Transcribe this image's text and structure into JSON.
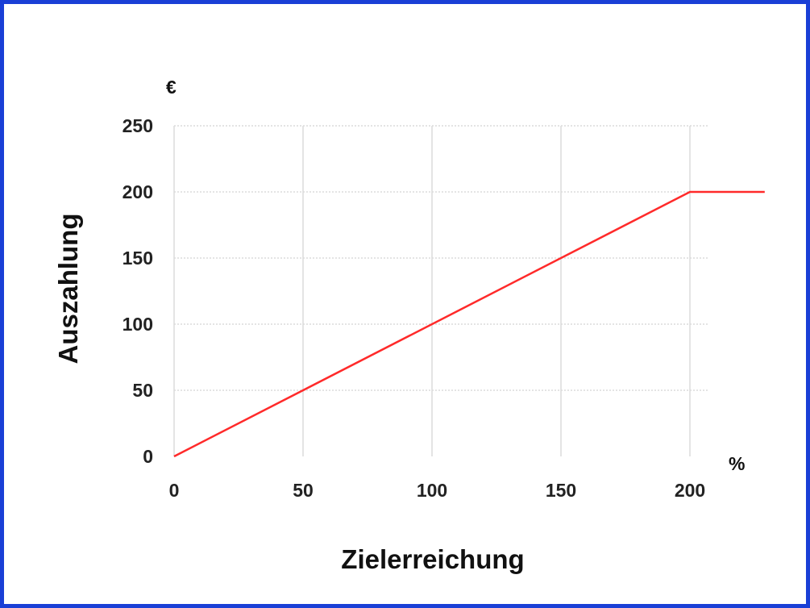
{
  "chart_data": {
    "type": "line",
    "title": "",
    "xlabel": "Zielerreichung",
    "ylabel": "Auszahlung",
    "x_unit": "%",
    "y_unit": "€",
    "xlim": [
      0,
      200
    ],
    "ylim": [
      0,
      250
    ],
    "x_ticks": [
      0,
      50,
      100,
      150,
      200
    ],
    "y_ticks": [
      0,
      50,
      100,
      150,
      200,
      250
    ],
    "grid": true,
    "series": [
      {
        "color": "#ff2a2a",
        "points": [
          [
            0,
            0
          ],
          [
            200,
            200
          ],
          [
            229,
            200
          ]
        ]
      }
    ]
  },
  "colors": {
    "frame_border": "#1a3fd6",
    "grid": "#dcdcdc",
    "line": "#ff2a2a"
  }
}
